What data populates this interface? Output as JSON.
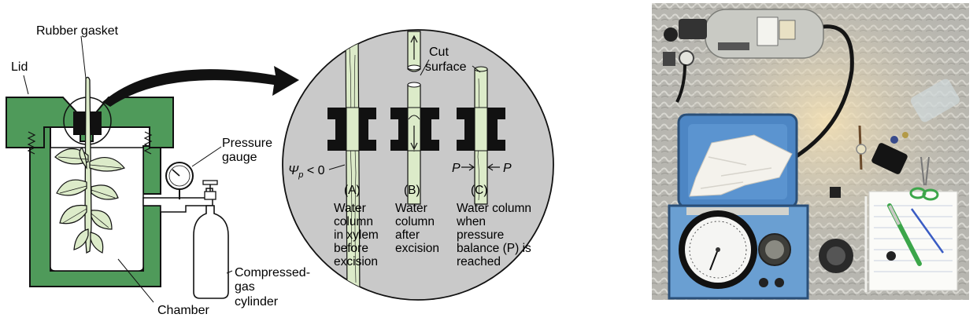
{
  "diagram": {
    "labels": {
      "lid": "Lid",
      "rubber_gasket": "Rubber gasket",
      "pressure_gauge_1": "Pressure",
      "pressure_gauge_2": "gauge",
      "compressed_gas_1": "Compressed-",
      "compressed_gas_2": "gas",
      "compressed_gas_3": "cylinder",
      "chamber": "Chamber",
      "cut_surface_1": "Cut",
      "cut_surface_2": "surface",
      "psi_symbol": "Ψ",
      "psi_sub": "p",
      "psi_rel": " < 0",
      "p_left": "P",
      "p_right": "P"
    },
    "panels": [
      {
        "id": "A",
        "tag": "(A)",
        "lines": [
          "Water",
          "column",
          "in xylem",
          "before",
          "excision"
        ]
      },
      {
        "id": "B",
        "tag": "(B)",
        "lines": [
          "Water",
          "column",
          "after",
          "excision"
        ]
      },
      {
        "id": "C",
        "tag": "(C)",
        "lines": [
          "Water column",
          "when",
          "pressure",
          "balance (P) is",
          "reached"
        ]
      }
    ],
    "colors": {
      "chamber_green": "#4f9a5a",
      "stem_light": "#dcebc9",
      "circle_gray": "#c9c9c9",
      "outline": "#111111"
    }
  },
  "photo": {
    "description_icon": "pressure-chamber-photo",
    "colors": {
      "lid_blue": "#4d86c4",
      "table_silver": "#b9b9b4",
      "cylinder_silver": "#c9cac4"
    }
  }
}
